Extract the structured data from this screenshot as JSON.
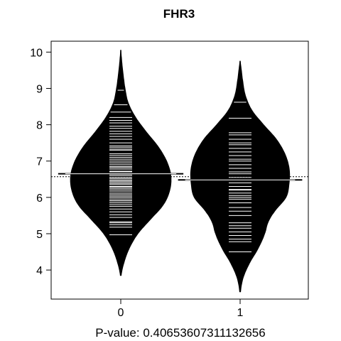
{
  "chart_data": {
    "type": "beanplot",
    "title": "FHR3",
    "xlabel": "P-value: 0.40653607311132656",
    "categories": [
      "0",
      "1"
    ],
    "y_ticks": [
      4,
      5,
      6,
      7,
      8,
      9,
      10
    ],
    "ylim": [
      3.2,
      10.3
    ],
    "overall_mean": 6.57,
    "colors": {
      "bean": "#000000",
      "line": "#ffffff",
      "background": "#ffffff"
    },
    "series": [
      {
        "name": "0",
        "mean": 6.65,
        "range": [
          3.85,
          10.05
        ],
        "density": [
          [
            3.85,
            0.004
          ],
          [
            4.2,
            0.03
          ],
          [
            4.6,
            0.08
          ],
          [
            5.0,
            0.16
          ],
          [
            5.4,
            0.28
          ],
          [
            5.8,
            0.4
          ],
          [
            6.2,
            0.46
          ],
          [
            6.6,
            0.47
          ],
          [
            7.0,
            0.43
          ],
          [
            7.4,
            0.35
          ],
          [
            7.8,
            0.24
          ],
          [
            8.2,
            0.14
          ],
          [
            8.6,
            0.07
          ],
          [
            9.0,
            0.04
          ],
          [
            9.4,
            0.022
          ],
          [
            9.8,
            0.008
          ],
          [
            10.05,
            0.002
          ]
        ],
        "points": [
          4.97,
          5.18,
          5.25,
          5.3,
          5.33,
          5.45,
          5.52,
          5.6,
          5.68,
          5.75,
          5.8,
          5.85,
          5.9,
          5.93,
          5.98,
          6.02,
          6.06,
          6.1,
          6.15,
          6.2,
          6.24,
          6.28,
          6.3,
          6.35,
          6.38,
          6.42,
          6.45,
          6.48,
          6.52,
          6.55,
          6.6,
          6.63,
          6.65,
          6.7,
          6.72,
          6.78,
          6.82,
          6.85,
          6.9,
          6.95,
          7.0,
          7.05,
          7.1,
          7.15,
          7.2,
          7.3,
          7.33,
          7.38,
          7.42,
          7.5,
          7.6,
          7.68,
          7.75,
          7.82,
          7.9,
          7.96,
          8.05,
          8.12,
          8.2,
          8.35,
          8.55,
          8.95
        ]
      },
      {
        "name": "1",
        "mean": 6.48,
        "range": [
          3.4,
          9.75
        ],
        "density": [
          [
            3.4,
            0.004
          ],
          [
            3.8,
            0.03
          ],
          [
            4.2,
            0.09
          ],
          [
            4.6,
            0.17
          ],
          [
            5.0,
            0.23
          ],
          [
            5.3,
            0.26
          ],
          [
            5.6,
            0.32
          ],
          [
            6.0,
            0.43
          ],
          [
            6.4,
            0.46
          ],
          [
            6.8,
            0.46
          ],
          [
            7.2,
            0.42
          ],
          [
            7.6,
            0.34
          ],
          [
            8.0,
            0.22
          ],
          [
            8.4,
            0.11
          ],
          [
            8.8,
            0.05
          ],
          [
            9.2,
            0.025
          ],
          [
            9.5,
            0.012
          ],
          [
            9.75,
            0.002
          ]
        ],
        "points": [
          4.5,
          4.78,
          4.85,
          4.95,
          5.05,
          5.15,
          5.22,
          5.3,
          5.5,
          5.62,
          5.72,
          5.85,
          5.95,
          6.0,
          6.05,
          6.12,
          6.2,
          6.22,
          6.3,
          6.4,
          6.55,
          6.65,
          6.7,
          6.8,
          6.9,
          7.0,
          7.05,
          7.15,
          7.25,
          7.35,
          7.45,
          7.5,
          7.6,
          7.72,
          7.78,
          8.18,
          8.62
        ]
      }
    ]
  }
}
